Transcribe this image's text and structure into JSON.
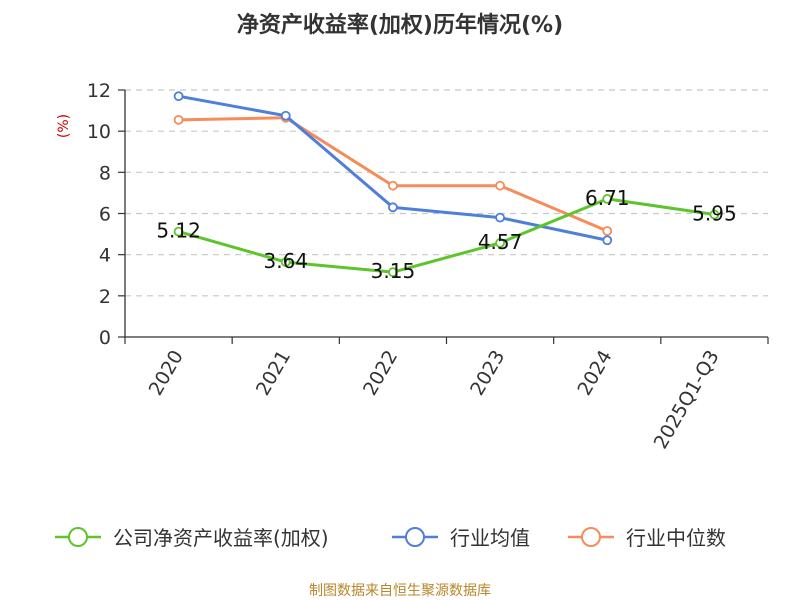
{
  "chart_data": {
    "type": "line",
    "title": "净资产收益率(加权)历年情况(%)",
    "ylabel": "(%)",
    "xlabel": "",
    "ylim": [
      0,
      12
    ],
    "yticks": [
      0,
      2,
      4,
      6,
      8,
      10,
      12
    ],
    "grid": true,
    "legend_position": "bottom",
    "categories": [
      "2020",
      "2021",
      "2022",
      "2023",
      "2024",
      "2025Q1-Q3"
    ],
    "series": [
      {
        "name": "公司净资产收益率(加权)",
        "color": "#5ec42c",
        "values": [
          5.12,
          3.64,
          3.15,
          4.57,
          6.71,
          5.95
        ],
        "labels": [
          "5.12",
          "3.64",
          "3.15",
          "4.57",
          "6.71",
          "5.95"
        ]
      },
      {
        "name": "行业均值",
        "color": "#4f7fd8",
        "values": [
          11.7,
          10.75,
          6.3,
          5.8,
          4.7,
          null
        ]
      },
      {
        "name": "行业中位数",
        "color": "#f58c5a",
        "values": [
          10.55,
          10.65,
          7.35,
          7.35,
          5.15,
          null
        ]
      }
    ]
  },
  "source_text": "制图数据来自恒生聚源数据库"
}
